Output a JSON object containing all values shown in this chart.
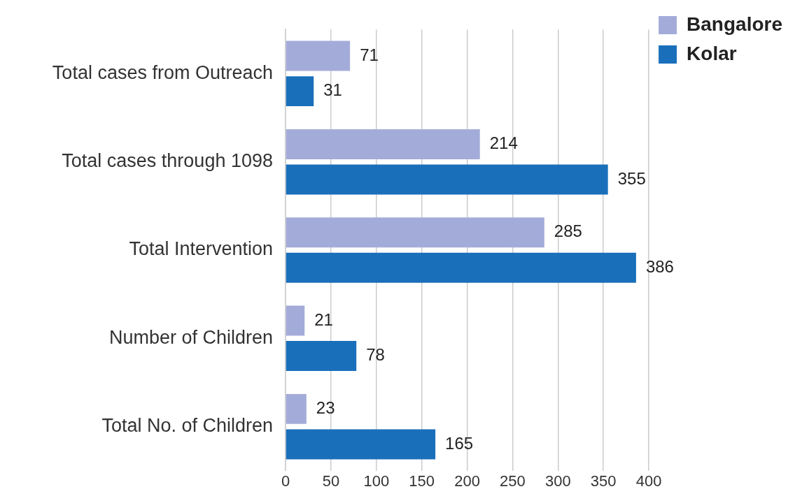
{
  "chart_data": {
    "type": "bar",
    "orientation": "horizontal",
    "categories": [
      "Total cases from Outreach",
      "Total cases through 1098",
      "Total Intervention",
      "Number of Children",
      "Total No. of Children"
    ],
    "series": [
      {
        "name": "Bangalore",
        "color": "#a3acd9",
        "values": [
          71,
          214,
          285,
          21,
          23
        ]
      },
      {
        "name": "Kolar",
        "color": "#1a6fba",
        "values": [
          31,
          355,
          386,
          78,
          165
        ]
      }
    ],
    "xlim": [
      0,
      400
    ],
    "xticks": [
      0,
      50,
      100,
      150,
      200,
      250,
      300,
      350,
      400
    ],
    "grid": "x",
    "legend": "top right",
    "data_labels": true
  }
}
